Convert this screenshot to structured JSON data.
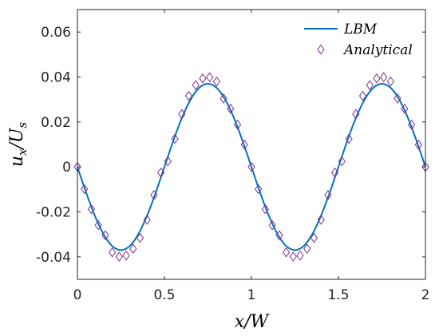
{
  "chart_data": {
    "type": "line",
    "xlabel": "x/W",
    "ylabel": "u_x/U_s",
    "xlim": [
      0,
      2
    ],
    "ylim": [
      -0.05,
      0.07
    ],
    "xticks": [
      0,
      0.5,
      1,
      1.5,
      2
    ],
    "xtick_labels": [
      "0",
      "0.5",
      "1",
      "1.5",
      "2"
    ],
    "yticks": [
      -0.04,
      -0.02,
      0,
      0.02,
      0.04,
      0.06
    ],
    "ytick_labels": [
      "-0.04",
      "-0.02",
      "0",
      "0.02",
      "0.04",
      "0.06"
    ],
    "grid": false,
    "legend_position": "top-right",
    "series": [
      {
        "name": "LBM",
        "style": "line",
        "color": "#0072BD",
        "x": [
          0,
          0.05,
          0.1,
          0.15,
          0.2,
          0.25,
          0.3,
          0.35,
          0.4,
          0.45,
          0.5,
          0.55,
          0.6,
          0.65,
          0.7,
          0.75,
          0.8,
          0.85,
          0.9,
          0.95,
          1.0,
          1.05,
          1.1,
          1.15,
          1.2,
          1.25,
          1.3,
          1.35,
          1.4,
          1.45,
          1.5,
          1.55,
          1.6,
          1.65,
          1.7,
          1.75,
          1.8,
          1.85,
          1.9,
          1.95,
          2.0
        ],
        "y": [
          0,
          -0.0114,
          -0.0217,
          -0.0299,
          -0.0352,
          -0.037,
          -0.0352,
          -0.0299,
          -0.0217,
          -0.0114,
          0,
          0.0114,
          0.0217,
          0.0299,
          0.0352,
          0.037,
          0.0352,
          0.0299,
          0.0217,
          0.0114,
          0,
          -0.0114,
          -0.0217,
          -0.0299,
          -0.0352,
          -0.037,
          -0.0352,
          -0.0299,
          -0.0217,
          -0.0114,
          0,
          0.0114,
          0.0217,
          0.0299,
          0.0352,
          0.037,
          0.0352,
          0.0299,
          0.0217,
          0.0114,
          0
        ]
      },
      {
        "name": "Analytical",
        "style": "markers",
        "marker": "diamond",
        "color": "#7E2F8E",
        "x": [
          0,
          0.04,
          0.08,
          0.12,
          0.16,
          0.2,
          0.24,
          0.28,
          0.32,
          0.36,
          0.4,
          0.44,
          0.48,
          0.52,
          0.56,
          0.6,
          0.64,
          0.68,
          0.72,
          0.76,
          0.8,
          0.84,
          0.88,
          0.92,
          0.96,
          1.0,
          1.04,
          1.08,
          1.12,
          1.16,
          1.2,
          1.24,
          1.28,
          1.32,
          1.36,
          1.4,
          1.44,
          1.48,
          1.52,
          1.56,
          1.6,
          1.64,
          1.68,
          1.72,
          1.76,
          1.8,
          1.84,
          1.88,
          1.92,
          1.96,
          2.0
        ],
        "y": [
          0,
          -0.0099,
          -0.0188,
          -0.0259,
          -0.0304,
          -0.038,
          -0.0399,
          -0.0394,
          -0.0364,
          -0.0316,
          -0.0235,
          -0.0125,
          -0.0025,
          0.0025,
          0.0125,
          0.0235,
          0.0316,
          0.0364,
          0.0394,
          0.0399,
          0.038,
          0.0304,
          0.0259,
          0.0188,
          0.0099,
          0,
          -0.0099,
          -0.0188,
          -0.0259,
          -0.0304,
          -0.038,
          -0.0399,
          -0.0394,
          -0.0364,
          -0.0316,
          -0.0235,
          -0.0125,
          -0.0025,
          0.0025,
          0.0125,
          0.0235,
          0.0316,
          0.0364,
          0.0394,
          0.0399,
          0.038,
          0.0304,
          0.0259,
          0.0188,
          0.0099,
          0
        ]
      }
    ]
  }
}
